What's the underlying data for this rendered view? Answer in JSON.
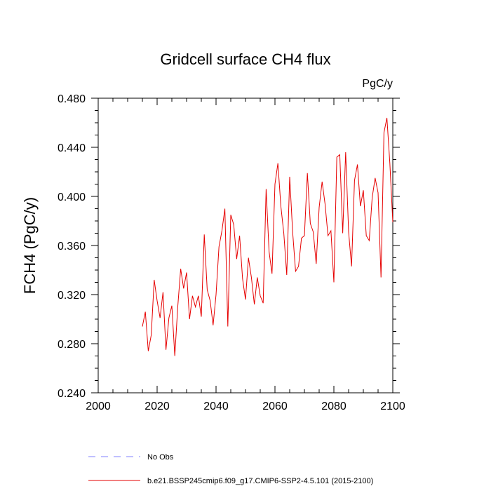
{
  "chart_data": {
    "type": "line",
    "title": "Gridcell surface CH4 flux",
    "units_label": "PgC/y",
    "xlabel": "",
    "ylabel": "FCH4  (PgC/y)",
    "xlim": [
      2000,
      2100
    ],
    "ylim": [
      0.24,
      0.48
    ],
    "x_ticks": [
      2000,
      2020,
      2040,
      2060,
      2080,
      2100
    ],
    "x_tick_labels": [
      "2000",
      "2020",
      "2040",
      "2060",
      "2080",
      "2100"
    ],
    "y_ticks": [
      0.24,
      0.28,
      0.32,
      0.36,
      0.4,
      0.44,
      0.48
    ],
    "y_tick_labels": [
      "0.240",
      "0.280",
      "0.320",
      "0.360",
      "0.400",
      "0.440",
      "0.480"
    ],
    "grid": false,
    "colors": {
      "obs": "#8080ff",
      "model": "#e60000"
    },
    "legend": [
      {
        "label": "No Obs",
        "style": "dashed",
        "color": "#8080ff"
      },
      {
        "label": "b.e21.BSSP245cmip6.f09_g17.CMIP6-SSP2-4.5.101 (2015-2100)",
        "style": "solid",
        "color": "#e60000"
      }
    ],
    "series": [
      {
        "name": "b.e21.BSSP245cmip6.f09_g17.CMIP6-SSP2-4.5.101 (2015-2100)",
        "x": [
          2015,
          2016,
          2017,
          2018,
          2019,
          2020,
          2021,
          2022,
          2023,
          2024,
          2025,
          2026,
          2027,
          2028,
          2029,
          2030,
          2031,
          2032,
          2033,
          2034,
          2035,
          2036,
          2037,
          2038,
          2039,
          2040,
          2041,
          2042,
          2043,
          2044,
          2045,
          2046,
          2047,
          2048,
          2049,
          2050,
          2051,
          2052,
          2053,
          2054,
          2055,
          2056,
          2057,
          2058,
          2059,
          2060,
          2061,
          2062,
          2063,
          2064,
          2065,
          2066,
          2067,
          2068,
          2069,
          2070,
          2071,
          2072,
          2073,
          2074,
          2075,
          2076,
          2077,
          2078,
          2079,
          2080,
          2081,
          2082,
          2083,
          2084,
          2085,
          2086,
          2087,
          2088,
          2089,
          2090,
          2091,
          2092,
          2093,
          2094,
          2095,
          2096,
          2097,
          2098,
          2099,
          2100
        ],
        "values": [
          0.294,
          0.306,
          0.274,
          0.287,
          0.332,
          0.315,
          0.301,
          0.322,
          0.275,
          0.301,
          0.311,
          0.27,
          0.31,
          0.341,
          0.325,
          0.338,
          0.3,
          0.319,
          0.31,
          0.319,
          0.302,
          0.369,
          0.324,
          0.315,
          0.295,
          0.32,
          0.359,
          0.372,
          0.39,
          0.294,
          0.385,
          0.377,
          0.349,
          0.368,
          0.333,
          0.316,
          0.35,
          0.334,
          0.312,
          0.334,
          0.319,
          0.313,
          0.406,
          0.355,
          0.337,
          0.41,
          0.427,
          0.392,
          0.37,
          0.336,
          0.416,
          0.371,
          0.339,
          0.343,
          0.366,
          0.368,
          0.419,
          0.378,
          0.371,
          0.345,
          0.391,
          0.412,
          0.394,
          0.368,
          0.372,
          0.33,
          0.432,
          0.434,
          0.37,
          0.436,
          0.371,
          0.343,
          0.413,
          0.426,
          0.392,
          0.405,
          0.368,
          0.364,
          0.399,
          0.415,
          0.403,
          0.334,
          0.452,
          0.464,
          0.427,
          0.379
        ]
      }
    ]
  }
}
